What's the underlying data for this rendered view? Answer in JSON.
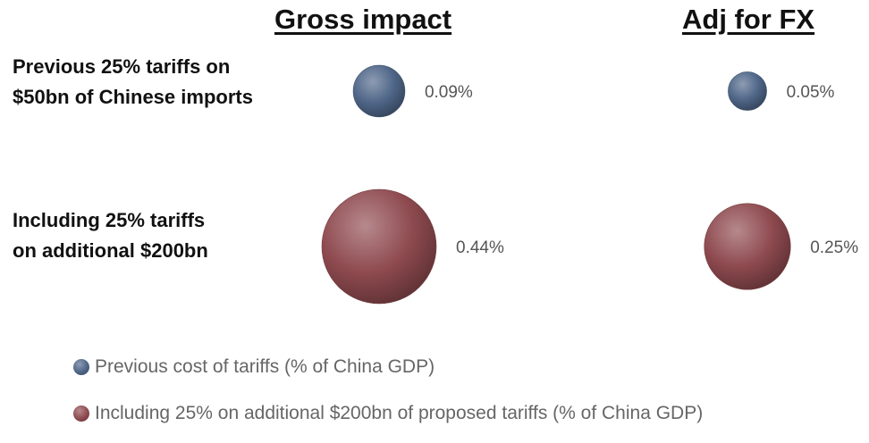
{
  "chart_data": {
    "type": "bubble",
    "columns": [
      "Gross impact",
      "Adj for FX"
    ],
    "rows": [
      [
        "Previous 25% tariffs on",
        "$50bn of Chinese imports"
      ],
      [
        "Including 25% tariffs",
        "on additional $200bn"
      ]
    ],
    "series": [
      {
        "name": "Previous cost of tariffs (% of China GDP)",
        "color": "#4f6688",
        "values": [
          0.09,
          0.05
        ],
        "labels": [
          "0.09%",
          "0.05%"
        ]
      },
      {
        "name": "Including 25% on additional $200bn of proposed tariffs (% of China GDP)",
        "color": "#8e4a4f",
        "values": [
          0.44,
          0.25
        ],
        "labels": [
          "0.44%",
          "0.25%"
        ]
      }
    ],
    "legend_position": "bottom-left",
    "grid": false
  }
}
